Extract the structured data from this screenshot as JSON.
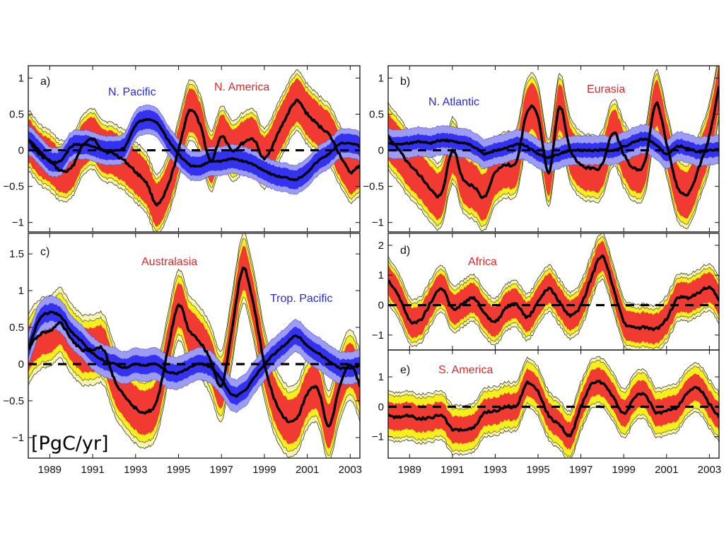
{
  "unit_label": "[PgC/yr]",
  "colors": {
    "land_inner": "#f03a32",
    "land_mid": "#f5f01c",
    "land_outer": "#f6f3b0",
    "ocean_inner": "#3232f0",
    "ocean_outer": "#9c9cf2",
    "line": "#000000",
    "ocean_label": "#2a2acf",
    "land_label": "#e02828"
  },
  "chart_data": [
    {
      "type": "area",
      "panel": "a)",
      "title": "",
      "xlabel": "",
      "ylabel": "[PgC/yr]",
      "xlim": [
        1988.0,
        2003.45
      ],
      "ylim": [
        -1.13,
        1.17
      ],
      "xticks": [
        1989,
        1991,
        1993,
        1995,
        1997,
        1999,
        2001,
        2003
      ],
      "xtick_labels_shown": false,
      "yticks": [
        -1,
        -0.5,
        0,
        0.5,
        1
      ],
      "ytick_labels": [
        "−1",
        "−0.5",
        "0",
        "0.5",
        "1"
      ],
      "zero_line": "dashed",
      "x": [
        1988.0,
        1988.5,
        1989.0,
        1989.5,
        1990.0,
        1990.5,
        1991.0,
        1991.5,
        1992.0,
        1992.5,
        1993.0,
        1993.5,
        1994.0,
        1994.5,
        1995.0,
        1995.5,
        1996.0,
        1996.5,
        1997.0,
        1997.5,
        1998.0,
        1998.5,
        1999.0,
        1999.5,
        2000.0,
        2000.5,
        2001.0,
        2001.5,
        2002.0,
        2002.5,
        2003.0,
        2003.45
      ],
      "series": [
        {
          "name": "N. America",
          "kind": "land",
          "label_position": "top-center-right",
          "values": [
            0.15,
            -0.05,
            -0.15,
            -0.28,
            -0.25,
            0.05,
            0.15,
            0.0,
            -0.05,
            -0.15,
            -0.3,
            -0.45,
            -0.75,
            -0.5,
            0.0,
            0.55,
            0.35,
            -0.15,
            0.2,
            0.0,
            0.1,
            0.15,
            -0.12,
            0.15,
            0.45,
            0.68,
            0.5,
            0.35,
            0.22,
            -0.05,
            -0.3,
            -0.2
          ],
          "uncertainty": {
            "inner": 0.3,
            "mid": 0.36,
            "outer": 0.42
          }
        },
        {
          "name": "N. Pacific",
          "kind": "ocean",
          "label_position": "top-left",
          "values": [
            0.15,
            0.0,
            -0.15,
            -0.15,
            0.05,
            0.08,
            0.05,
            0.0,
            0.0,
            0.05,
            0.35,
            0.42,
            0.38,
            0.15,
            -0.05,
            -0.2,
            -0.22,
            -0.15,
            -0.15,
            -0.12,
            -0.15,
            -0.2,
            -0.28,
            -0.35,
            -0.38,
            -0.4,
            -0.3,
            -0.15,
            -0.05,
            0.08,
            0.1,
            0.05
          ],
          "uncertainty": {
            "inner": 0.13,
            "outer": 0.2
          }
        }
      ]
    },
    {
      "type": "area",
      "panel": "b)",
      "xlim": [
        1988.0,
        2003.45
      ],
      "ylim": [
        -1.13,
        1.17
      ],
      "xticks": [
        1989,
        1991,
        1993,
        1995,
        1997,
        1999,
        2001,
        2003
      ],
      "xtick_labels_shown": false,
      "yticks": [
        -1,
        -0.5,
        0,
        0.5,
        1
      ],
      "ytick_labels": [
        "−1",
        "−0.5",
        "0",
        "0.5",
        "1"
      ],
      "zero_line": "dashed",
      "x": [
        1988.0,
        1988.5,
        1989.0,
        1989.5,
        1990.0,
        1990.5,
        1991.0,
        1991.5,
        1992.0,
        1992.5,
        1993.0,
        1993.5,
        1994.0,
        1994.5,
        1995.0,
        1995.5,
        1996.0,
        1996.5,
        1997.0,
        1997.5,
        1998.0,
        1998.5,
        1999.0,
        1999.5,
        2000.0,
        2000.5,
        2001.0,
        2001.5,
        2002.0,
        2002.5,
        2003.0,
        2003.45
      ],
      "series": [
        {
          "name": "Eurasia",
          "kind": "land",
          "label_position": "top-right",
          "values": [
            0.2,
            0.0,
            -0.2,
            -0.35,
            -0.55,
            -0.6,
            0.0,
            -0.4,
            -0.5,
            -0.65,
            -0.3,
            -0.2,
            -0.15,
            0.55,
            0.45,
            -0.3,
            0.6,
            0.0,
            -0.2,
            -0.25,
            -0.2,
            0.25,
            -0.05,
            -0.25,
            -0.15,
            0.65,
            0.1,
            -0.5,
            -0.6,
            -0.25,
            0.2,
            0.9
          ],
          "uncertainty": {
            "inner": 0.32,
            "mid": 0.4,
            "outer": 0.46
          }
        },
        {
          "name": "N. Atlantic",
          "kind": "ocean",
          "label_position": "top-left",
          "values": [
            0.1,
            0.08,
            0.1,
            0.12,
            0.1,
            0.14,
            0.12,
            0.1,
            0.05,
            -0.05,
            0.0,
            0.03,
            0.08,
            0.05,
            -0.05,
            -0.1,
            -0.05,
            0.0,
            0.0,
            0.0,
            0.0,
            0.0,
            0.05,
            0.12,
            0.15,
            0.08,
            -0.05,
            0.05,
            0.03,
            -0.02,
            0.0,
            0.02
          ],
          "uncertainty": {
            "inner": 0.1,
            "outer": 0.2
          }
        }
      ]
    },
    {
      "type": "area",
      "panel": "c)",
      "xlim": [
        1988.0,
        2003.45
      ],
      "ylim": [
        -1.28,
        1.78
      ],
      "xticks": [
        1989,
        1991,
        1993,
        1995,
        1997,
        1999,
        2001,
        2003
      ],
      "xtick_labels": [
        "1989",
        "1991",
        "1993",
        "1995",
        "1997",
        "1999",
        "2001",
        "2003"
      ],
      "xtick_labels_shown": true,
      "yticks": [
        -1,
        -0.5,
        0,
        0.5,
        1,
        1.5
      ],
      "ytick_labels": [
        "−1",
        "−0.5",
        "0",
        "0.5",
        "1",
        "1.5"
      ],
      "zero_line": "dashed",
      "x": [
        1988.0,
        1988.5,
        1989.0,
        1989.5,
        1990.0,
        1990.5,
        1991.0,
        1991.5,
        1992.0,
        1992.5,
        1993.0,
        1993.5,
        1994.0,
        1994.5,
        1995.0,
        1995.5,
        1996.0,
        1996.5,
        1997.0,
        1997.5,
        1998.0,
        1998.5,
        1999.0,
        1999.5,
        2000.0,
        2000.5,
        2001.0,
        2001.5,
        2002.0,
        2002.5,
        2003.0,
        2003.45
      ],
      "series": [
        {
          "name": "Australasia",
          "kind": "land",
          "label_position": "top-center",
          "values": [
            0.2,
            0.4,
            0.45,
            0.55,
            0.35,
            0.2,
            0.2,
            0.2,
            -0.2,
            -0.45,
            -0.6,
            -0.65,
            -0.5,
            0.2,
            0.8,
            0.45,
            0.3,
            0.05,
            -0.3,
            0.5,
            1.3,
            0.8,
            0.0,
            -0.5,
            -0.75,
            -0.75,
            -0.4,
            -0.35,
            -0.85,
            -0.3,
            0.0,
            -0.3
          ],
          "uncertainty": {
            "inner": 0.3,
            "mid": 0.4,
            "outer": 0.48
          }
        },
        {
          "name": "Trop. Pacific",
          "kind": "ocean",
          "label_position": "top-right",
          "values": [
            0.2,
            0.6,
            0.7,
            0.65,
            0.45,
            0.3,
            0.15,
            0.05,
            0.0,
            -0.05,
            0.0,
            -0.02,
            0.0,
            -0.1,
            -0.12,
            -0.05,
            0.0,
            -0.05,
            -0.2,
            -0.42,
            -0.38,
            -0.2,
            0.0,
            0.15,
            0.28,
            0.38,
            0.25,
            0.15,
            0.05,
            -0.05,
            -0.05,
            -0.02
          ],
          "uncertainty": {
            "inner": 0.12,
            "outer": 0.22
          }
        }
      ]
    },
    {
      "type": "area",
      "panel": "d)",
      "xlim": [
        1988.0,
        2003.45
      ],
      "ylim": [
        -1.5,
        2.4
      ],
      "xticks": [
        1989,
        1991,
        1993,
        1995,
        1997,
        1999,
        2001,
        2003
      ],
      "xtick_labels_shown": false,
      "yticks": [
        -1,
        0,
        1,
        2
      ],
      "ytick_labels": [
        "−1",
        "0",
        "1",
        "2"
      ],
      "zero_line": "dashed",
      "x": [
        1988.0,
        1988.5,
        1989.0,
        1989.5,
        1990.0,
        1990.5,
        1991.0,
        1991.5,
        1992.0,
        1992.5,
        1993.0,
        1993.5,
        1994.0,
        1994.5,
        1995.0,
        1995.5,
        1996.0,
        1996.5,
        1997.0,
        1997.5,
        1998.0,
        1998.5,
        1999.0,
        1999.5,
        2000.0,
        2000.5,
        2001.0,
        2001.5,
        2002.0,
        2002.5,
        2003.0,
        2003.45
      ],
      "series": [
        {
          "name": "Africa",
          "kind": "land",
          "label_position": "top-center",
          "values": [
            0.85,
            0.3,
            -0.5,
            -0.5,
            0.1,
            0.55,
            -0.1,
            0.05,
            0.25,
            -0.3,
            -0.55,
            -0.1,
            0.0,
            -0.4,
            0.1,
            0.55,
            0.1,
            -0.35,
            0.0,
            0.95,
            1.65,
            0.6,
            -0.55,
            -0.75,
            -0.75,
            -0.8,
            -0.45,
            0.2,
            0.25,
            0.4,
            0.6,
            0.15
          ],
          "uncertainty": {
            "inner": 0.5,
            "mid": 0.65,
            "outer": 0.78
          }
        }
      ]
    },
    {
      "type": "area",
      "panel": "e)",
      "xlim": [
        1988.0,
        2003.45
      ],
      "ylim": [
        -1.72,
        1.9
      ],
      "xticks": [
        1989,
        1991,
        1993,
        1995,
        1997,
        1999,
        2001,
        2003
      ],
      "xtick_labels": [
        "1989",
        "1991",
        "1993",
        "1995",
        "1997",
        "1999",
        "2001",
        "2003"
      ],
      "xtick_labels_shown": true,
      "yticks": [
        -1,
        0,
        1
      ],
      "ytick_labels": [
        "−1",
        "0",
        "1"
      ],
      "zero_line": "dashed",
      "x": [
        1988.0,
        1988.5,
        1989.0,
        1989.5,
        1990.0,
        1990.5,
        1991.0,
        1991.5,
        1992.0,
        1992.5,
        1993.0,
        1993.5,
        1994.0,
        1994.5,
        1995.0,
        1995.5,
        1996.0,
        1996.5,
        1997.0,
        1997.5,
        1998.0,
        1998.5,
        1999.0,
        1999.5,
        2000.0,
        2000.5,
        2001.0,
        2001.5,
        2002.0,
        2002.5,
        2003.0,
        2003.45
      ],
      "series": [
        {
          "name": "S. America",
          "kind": "land",
          "label_position": "top-left",
          "values": [
            -0.3,
            -0.35,
            -0.3,
            -0.4,
            -0.35,
            -0.3,
            -0.75,
            -0.75,
            -0.7,
            -0.2,
            -0.15,
            0.0,
            0.05,
            0.8,
            0.5,
            -0.3,
            -0.6,
            -0.95,
            0.0,
            0.75,
            0.8,
            0.35,
            -0.25,
            0.3,
            0.4,
            -0.2,
            -0.1,
            0.0,
            0.5,
            0.6,
            0.1,
            -0.35
          ],
          "uncertainty": {
            "inner": 0.45,
            "mid": 0.7,
            "outer": 0.82
          }
        }
      ]
    }
  ]
}
